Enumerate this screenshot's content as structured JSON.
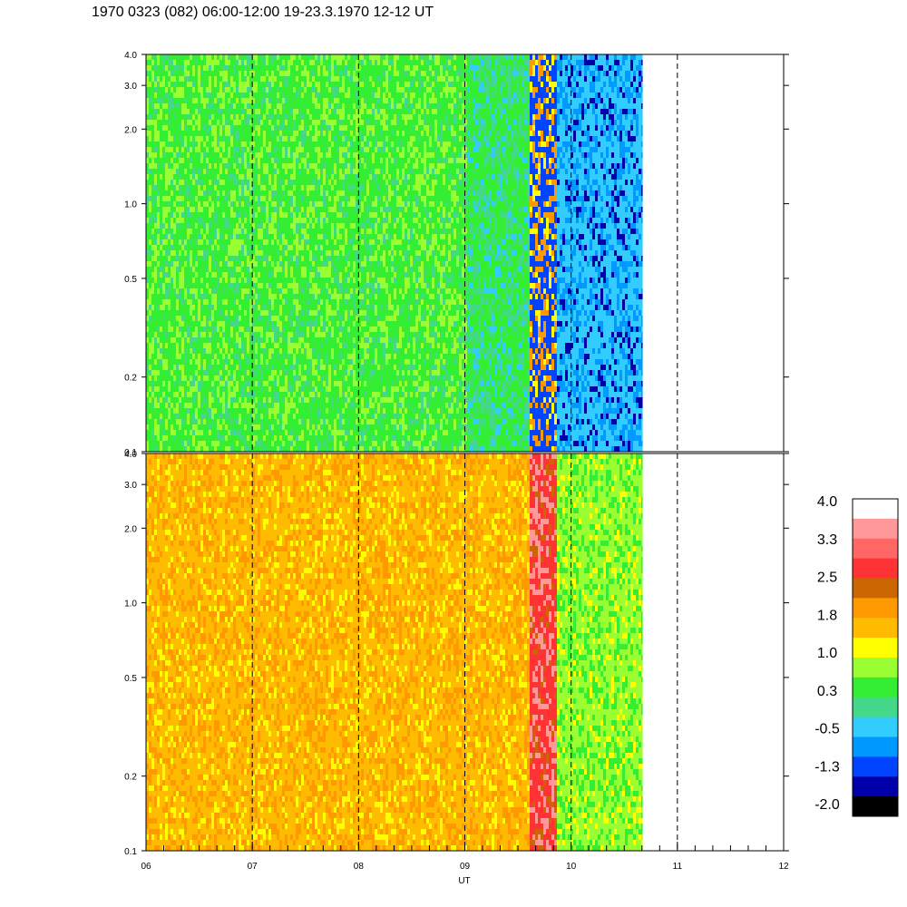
{
  "title": "1970 0323 (082) 06:00-12:00 19-23.3.1970  12-12 UT",
  "colorbar": {
    "labels": [
      "4.0",
      "3.3",
      "2.5",
      "1.8",
      "1.0",
      "0.3",
      "-0.5",
      "-1.3",
      "-2.0"
    ],
    "colors": [
      "#ffffff",
      "#ff9999",
      "#ff6666",
      "#ff3333",
      "#cc6600",
      "#ff9900",
      "#ffbb00",
      "#ffff00",
      "#99ff33",
      "#33ee33",
      "#44d98a",
      "#33ccff",
      "#0099ff",
      "#0044ff",
      "#0000aa",
      "#000000"
    ]
  },
  "chart_data": [
    {
      "type": "heatmap",
      "panel": "top",
      "xlabel": "",
      "ylabel": "",
      "yscale": "log",
      "ylim": [
        0.1,
        4.0
      ],
      "xlim": [
        6,
        12
      ],
      "yticks": [
        "0.1",
        "0.2",
        "0.5",
        "1.0",
        "2.0",
        "3.0",
        "4.0"
      ],
      "data_end_hour": 10.67,
      "dashed_lines_ut": [
        7,
        8,
        9,
        10,
        11
      ],
      "segments": [
        {
          "from_ut": 6.0,
          "to_ut": 9.0,
          "dominant_colors": [
            "#33ee33",
            "#99ff33",
            "#44d98a"
          ]
        },
        {
          "from_ut": 9.0,
          "to_ut": 9.6,
          "dominant_colors": [
            "#33ee33",
            "#44d98a",
            "#33ccff"
          ]
        },
        {
          "from_ut": 9.6,
          "to_ut": 9.85,
          "dominant_colors": [
            "#0044ff",
            "#ff9900",
            "#ffff00"
          ]
        },
        {
          "from_ut": 9.85,
          "to_ut": 10.67,
          "dominant_colors": [
            "#33ccff",
            "#0099ff",
            "#0000aa"
          ]
        }
      ]
    },
    {
      "type": "heatmap",
      "panel": "bottom",
      "xlabel": "UT",
      "ylabel": "",
      "yscale": "log",
      "ylim": [
        0.1,
        4.0
      ],
      "xlim": [
        6,
        12
      ],
      "yticks": [
        "0.1",
        "0.2",
        "0.5",
        "1.0",
        "2.0",
        "3.0",
        "4.0"
      ],
      "xticks": [
        "06",
        "07",
        "08",
        "09",
        "10",
        "11",
        "12"
      ],
      "data_end_hour": 10.67,
      "dashed_lines_ut": [
        7,
        8,
        9,
        10,
        11
      ],
      "segments": [
        {
          "from_ut": 6.0,
          "to_ut": 9.6,
          "dominant_colors": [
            "#ffbb00",
            "#ff9900",
            "#ffff00"
          ]
        },
        {
          "from_ut": 9.6,
          "to_ut": 9.85,
          "dominant_colors": [
            "#ff3333",
            "#ff9999",
            "#cc6600"
          ]
        },
        {
          "from_ut": 9.85,
          "to_ut": 10.67,
          "dominant_colors": [
            "#99ff33",
            "#33ee33",
            "#ffff00"
          ]
        }
      ]
    }
  ]
}
